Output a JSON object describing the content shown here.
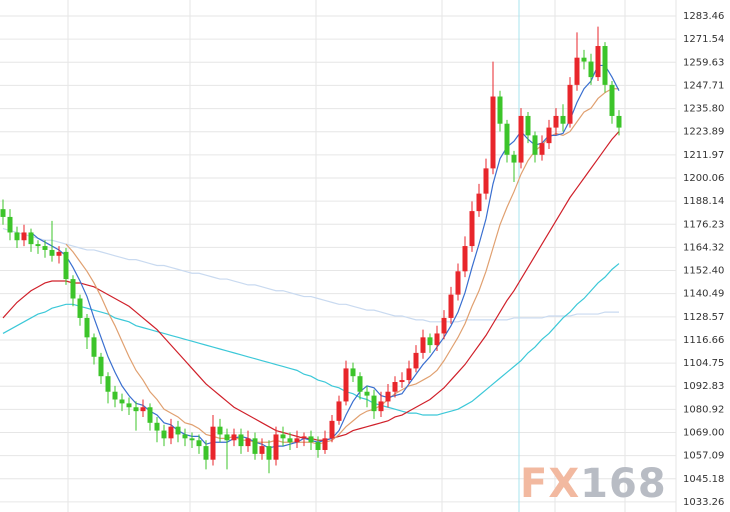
{
  "chart_data": {
    "type": "candlestick",
    "watermark": "FX168",
    "up_color": "#e8262b",
    "down_color": "#3cc42a",
    "grid": true,
    "ylim": [
      1028.07,
      1291.7
    ],
    "yticks": [
      1283.46,
      1271.54,
      1259.63,
      1247.71,
      {
        "value": 1235.8,
        "label": "1235.80"
      },
      1223.89,
      1211.97,
      1200.06,
      1188.14,
      1176.23,
      1164.32,
      {
        "value": 1152.4,
        "label": "1152.40"
      },
      1140.49,
      1128.57,
      1116.66,
      1104.75,
      1092.83,
      1080.92,
      {
        "value": 1069,
        "label": "1069.00"
      },
      1057.09,
      1045.18,
      1033.26
    ],
    "categories": [
      null,
      null,
      null,
      null,
      null,
      null,
      null,
      null,
      null,
      null,
      null,
      null,
      null,
      null,
      null,
      null,
      null,
      null,
      null,
      null,
      null,
      null,
      null,
      null,
      null,
      null,
      null,
      null,
      null,
      null,
      null,
      null,
      null,
      null,
      null,
      null,
      null,
      null,
      null,
      null,
      null,
      null,
      null,
      null,
      null,
      null,
      null,
      null,
      null,
      null,
      null,
      null,
      null,
      null,
      null,
      null,
      null,
      null,
      null,
      null,
      null,
      null,
      null,
      null,
      null,
      null,
      null,
      null,
      null,
      null,
      null,
      null,
      null,
      null,
      null,
      null,
      null,
      null,
      null,
      null,
      null,
      null,
      null,
      null,
      null,
      null,
      null,
      null,
      null
    ],
    "open": [
      1184,
      1180,
      1172,
      1168,
      1172,
      1166,
      1165,
      1163,
      1160,
      1162,
      1148,
      1138,
      1128,
      1118,
      1108,
      1098,
      1090,
      1086,
      1084,
      1082,
      1080,
      1082,
      1074,
      1070,
      1066,
      1072,
      1068,
      1066,
      1065,
      1062,
      1055,
      1072,
      1068,
      1065,
      1068,
      1062,
      1066,
      1058,
      1062,
      1055,
      1068,
      1066,
      1064,
      1066,
      1067,
      1064,
      1060,
      1066,
      1075,
      1085,
      1102,
      1098,
      1090,
      1088,
      1080,
      1085,
      1090,
      1095,
      1096,
      1102,
      1110,
      1118,
      1114,
      1120,
      1128,
      1140,
      1152,
      1165,
      1183,
      1192,
      1205,
      1242,
      1228,
      1212,
      1208,
      1232,
      1222,
      1212,
      1218,
      1226,
      1232,
      1228,
      1248,
      1262,
      1260,
      1252,
      1268,
      1248,
      1232
    ],
    "high": [
      1189,
      1184,
      1175,
      1176,
      1174,
      1168,
      1168,
      1178,
      1165,
      1164,
      1150,
      1140,
      1130,
      1120,
      1110,
      1100,
      1093,
      1089,
      1087,
      1085,
      1086,
      1084,
      1077,
      1073,
      1076,
      1075,
      1071,
      1069,
      1068,
      1065,
      1078,
      1076,
      1071,
      1071,
      1071,
      1070,
      1069,
      1066,
      1065,
      1072,
      1072,
      1069,
      1070,
      1069,
      1070,
      1067,
      1070,
      1078,
      1088,
      1106,
      1105,
      1100,
      1093,
      1091,
      1090,
      1094,
      1098,
      1100,
      1106,
      1114,
      1122,
      1120,
      1124,
      1132,
      1144,
      1156,
      1170,
      1188,
      1197,
      1210,
      1260,
      1245,
      1230,
      1214,
      1236,
      1234,
      1224,
      1222,
      1230,
      1236,
      1238,
      1252,
      1275,
      1266,
      1264,
      1278,
      1270,
      1250,
      1235
    ],
    "low": [
      1176,
      1168,
      1164,
      1165,
      1162,
      1161,
      1159,
      1157,
      1156,
      1145,
      1134,
      1124,
      1112,
      1104,
      1094,
      1084,
      1082,
      1080,
      1078,
      1070,
      1077,
      1070,
      1064,
      1062,
      1063,
      1064,
      1062,
      1061,
      1058,
      1050,
      1052,
      1064,
      1050,
      1062,
      1058,
      1059,
      1055,
      1055,
      1048,
      1052,
      1062,
      1060,
      1061,
      1062,
      1060,
      1056,
      1058,
      1064,
      1073,
      1083,
      1095,
      1086,
      1082,
      1076,
      1077,
      1082,
      1087,
      1092,
      1094,
      1100,
      1107,
      1110,
      1111,
      1117,
      1125,
      1137,
      1149,
      1162,
      1180,
      1189,
      1202,
      1224,
      1208,
      1198,
      1205,
      1218,
      1208,
      1209,
      1215,
      1222,
      1224,
      1226,
      1245,
      1256,
      1248,
      1250,
      1244,
      1228,
      1222
    ],
    "close": [
      1180,
      1172,
      1168,
      1172,
      1166,
      1165,
      1163,
      1160,
      1162,
      1148,
      1138,
      1128,
      1118,
      1108,
      1098,
      1090,
      1086,
      1084,
      1082,
      1080,
      1082,
      1074,
      1070,
      1066,
      1072,
      1068,
      1066,
      1065,
      1062,
      1055,
      1072,
      1068,
      1065,
      1068,
      1062,
      1066,
      1058,
      1062,
      1055,
      1068,
      1066,
      1064,
      1066,
      1067,
      1064,
      1060,
      1066,
      1075,
      1085,
      1102,
      1098,
      1090,
      1088,
      1080,
      1085,
      1090,
      1095,
      1096,
      1102,
      1110,
      1118,
      1114,
      1120,
      1128,
      1140,
      1152,
      1165,
      1183,
      1192,
      1205,
      1242,
      1228,
      1212,
      1208,
      1232,
      1222,
      1212,
      1218,
      1226,
      1232,
      1228,
      1248,
      1262,
      1260,
      1252,
      1268,
      1248,
      1232,
      1226
    ],
    "overlays": [
      {
        "color": "#c9daf0",
        "values": [
          1174,
          1173,
          1172,
          1171,
          1170,
          1169,
          1168,
          1168,
          1167,
          1166,
          1165,
          1164,
          1163,
          1163,
          1162,
          1161,
          1160,
          1159,
          1158,
          1158,
          1157,
          1156,
          1155,
          1155,
          1154,
          1153,
          1152,
          1151,
          1151,
          1150,
          1149,
          1148,
          1148,
          1147,
          1146,
          1145,
          1145,
          1144,
          1143,
          1142,
          1142,
          1141,
          1140,
          1139,
          1139,
          1138,
          1137,
          1136,
          1135,
          1135,
          1134,
          1133,
          1132,
          1132,
          1131,
          1130,
          1129,
          1129,
          1128,
          1127,
          1127,
          1126,
          1126,
          1126,
          1126,
          1126,
          1127,
          1127,
          1127,
          1127,
          1127,
          1127,
          1127,
          1128,
          1128,
          1128,
          1128,
          1128,
          1129,
          1129,
          1129,
          1129,
          1130,
          1130,
          1130,
          1130,
          1131,
          1131,
          1131
        ]
      },
      {
        "color": "#3cc8d8",
        "values": [
          1120,
          1122,
          1124,
          1126,
          1128,
          1130,
          1131,
          1133,
          1134,
          1135,
          1135,
          1134,
          1133,
          1132,
          1131,
          1130,
          1128,
          1127,
          1126,
          1124,
          1123,
          1122,
          1121,
          1120,
          1119,
          1118,
          1117,
          1116,
          1115,
          1114,
          1113,
          1112,
          1111,
          1110,
          1109,
          1108,
          1107,
          1106,
          1105,
          1104,
          1103,
          1102,
          1101,
          1099,
          1098,
          1096,
          1095,
          1093,
          1092,
          1090,
          1089,
          1087,
          1086,
          1084,
          1083,
          1082,
          1081,
          1080,
          1079,
          1079,
          1078,
          1078,
          1078,
          1079,
          1080,
          1081,
          1083,
          1085,
          1088,
          1091,
          1094,
          1097,
          1100,
          1103,
          1106,
          1110,
          1113,
          1117,
          1120,
          1124,
          1128,
          1131,
          1135,
          1138,
          1142,
          1146,
          1149,
          1153,
          1156
        ]
      },
      {
        "color": "#d0202a",
        "values": [
          1128,
          1132,
          1136,
          1139,
          1142,
          1144,
          1146,
          1147,
          1147,
          1147,
          1146,
          1146,
          1145,
          1144,
          1142,
          1140,
          1138,
          1136,
          1134,
          1131,
          1128,
          1125,
          1122,
          1118,
          1114,
          1110,
          1106,
          1102,
          1098,
          1094,
          1091,
          1088,
          1085,
          1082,
          1080,
          1078,
          1076,
          1074,
          1072,
          1070,
          1069,
          1068,
          1067,
          1066,
          1066,
          1065,
          1065,
          1066,
          1067,
          1068,
          1070,
          1071,
          1072,
          1073,
          1074,
          1075,
          1077,
          1078,
          1080,
          1082,
          1084,
          1086,
          1089,
          1092,
          1096,
          1100,
          1104,
          1109,
          1114,
          1119,
          1125,
          1131,
          1137,
          1142,
          1148,
          1154,
          1160,
          1166,
          1172,
          1178,
          1184,
          1190,
          1195,
          1200,
          1205,
          1210,
          1215,
          1220,
          1224
        ]
      },
      {
        "color": "#e0a070",
        "values": [
          null,
          null,
          null,
          null,
          null,
          null,
          null,
          null,
          null,
          1166,
          1162,
          1157,
          1152,
          1146,
          1139,
          1131,
          1124,
          1116,
          1108,
          1101,
          1096,
          1090,
          1086,
          1081,
          1079,
          1077,
          1074,
          1073,
          1071,
          1068,
          1067,
          1066,
          1066,
          1067,
          1065,
          1065,
          1064,
          1064,
          1064,
          1065,
          1064,
          1064,
          1064,
          1064,
          1064,
          1063,
          1064,
          1065,
          1068,
          1072,
          1075,
          1078,
          1080,
          1081,
          1083,
          1086,
          1089,
          1091,
          1093,
          1094,
          1096,
          1098,
          1101,
          1106,
          1112,
          1118,
          1125,
          1134,
          1142,
          1152,
          1164,
          1176,
          1185,
          1193,
          1202,
          1209,
          1214,
          1217,
          1221,
          1223,
          1222,
          1224,
          1229,
          1234,
          1236,
          1241,
          1244,
          1246,
          1246
        ]
      },
      {
        "color": "#3a6fd0",
        "values": [
          null,
          null,
          null,
          null,
          1172,
          1169,
          1167,
          1165,
          1163,
          1160,
          1154,
          1147,
          1139,
          1128,
          1118,
          1108,
          1100,
          1093,
          1088,
          1084,
          1083,
          1080,
          1078,
          1074,
          1073,
          1070,
          1068,
          1067,
          1067,
          1063,
          1064,
          1064,
          1064,
          1066,
          1067,
          1066,
          1064,
          1063,
          1061,
          1062,
          1062,
          1063,
          1064,
          1066,
          1065,
          1064,
          1065,
          1066,
          1070,
          1078,
          1085,
          1090,
          1093,
          1092,
          1088,
          1087,
          1088,
          1089,
          1094,
          1099,
          1104,
          1108,
          1113,
          1118,
          1124,
          1131,
          1141,
          1154,
          1166,
          1179,
          1197,
          1210,
          1216,
          1219,
          1224,
          1220,
          1217,
          1218,
          1222,
          1222,
          1223,
          1230,
          1239,
          1246,
          1250,
          1258,
          1258,
          1252,
          1245
        ]
      }
    ]
  }
}
